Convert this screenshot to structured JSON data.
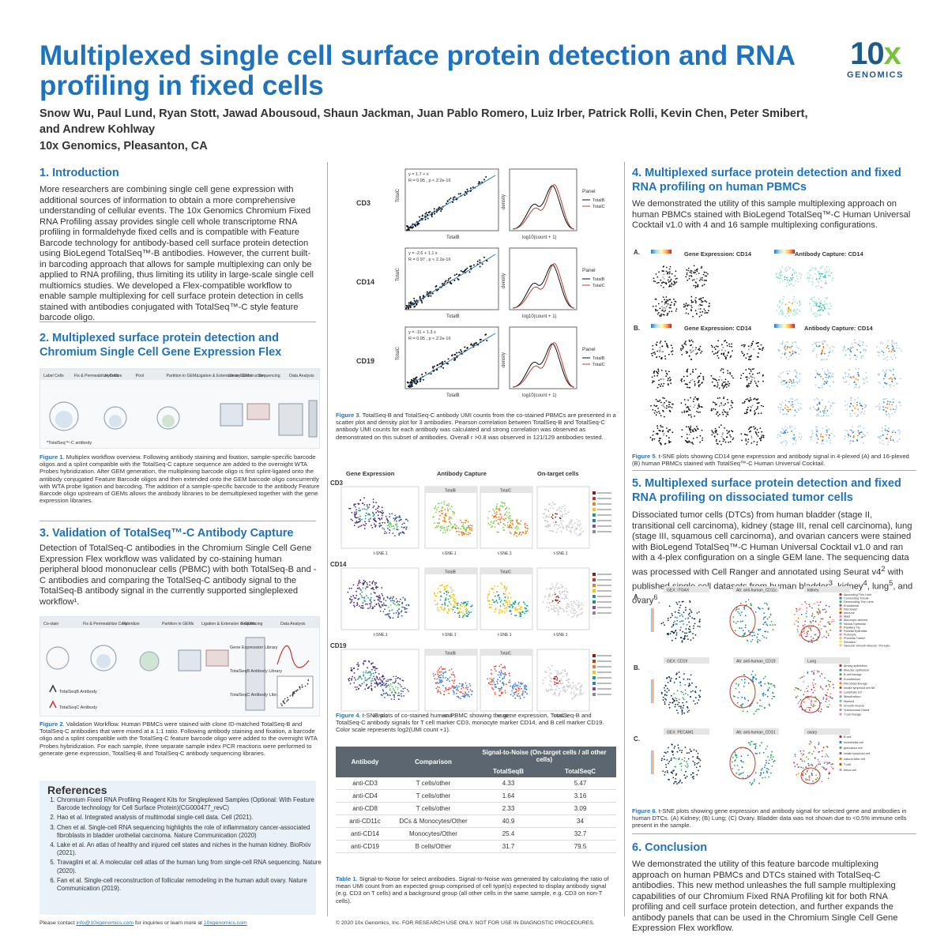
{
  "poster": {
    "title": "Multiplexed single cell surface protein detection and RNA profiling in fixed cells",
    "authors": "Snow Wu, Paul Lund, Ryan Stott, Jawad Abousoud, Shaun Jackman, Juan Pablo Romero, Luiz Irber, Patrick Rolli, Kevin Chen, Peter Smibert, and Andrew Kohlway",
    "affiliation": "10x Genomics, Pleasanton, CA",
    "logo_main": "10",
    "logo_x": "x",
    "logo_sub": "GENOMICS",
    "accent_color": "#1e73be"
  },
  "sec1": {
    "heading": "1. Introduction",
    "text": "More researchers are combining single cell gene expression with additional sources of information to obtain a more comprehensive understanding of cellular events. The 10x Genomics Chromium Fixed RNA Profiling assay provides single cell whole transcriptome RNA profiling in formaldehyde fixed cells and is compatible with Feature Barcode technology for antibody-based cell surface protein detection using BioLegend TotalSeq™-B antibodies. However, the current built-in barcoding approach that allows for sample multiplexing can only be applied to RNA profiling, thus limiting its utility in large-scale single cell multiomics studies. We developed a Flex-compatible workflow to enable sample multiplexing for cell surface protein detection in cells stained with antibodies conjugated with TotalSeq™-C style feature barcode oligo."
  },
  "sec2": {
    "heading": "2. Multiplexed surface protein detection and Chromium Single Cell Gene Expression Flex",
    "steps": [
      "Label Cells",
      "Fix & Permeabilize Cells",
      "Hybridize",
      "Pool",
      "Partition in GEMs",
      "Ligation & Extension in GEMs",
      "Library Construction",
      "Sequencing",
      "Data Analysis"
    ],
    "legend": "*TotalSeq™-C antibody",
    "fig_caption_label": "Figure 1",
    "fig_caption": ". Multiplex workflow overview. Following antibody staining and fixation, sample-specific barcode oligos and a splint compatible with the TotalSeq-C capture sequence are added to the overnight WTA Probes hybridization. After GEM generation, the multiplexing barcode oligo is first splint-ligated onto the antibody conjugated Feature Barcode oligos and then extended onto the GEM barcode oligo concurrently with WTA probe ligation and barcoding. The addition of a sample-specific barcode to the antibody Feature Barcode oligo upstream of GEMs allows the antibody libraries to be demultiplexed together with the gene expression libraries."
  },
  "sec3": {
    "heading": "3. Validation of TotalSeq™-C Antibody Capture",
    "text": "Detection of TotalSeq-C antibodies in the Chromium Single Cell Gene Expression Flex workflow was validated by co-staining human peripheral blood mononuclear cells (PBMC) with both TotalSeq-B and -C antibodies and comparing the TotalSeq-C antibody signal to the TotalSeq-B antibody signal in the currently supported singleplexed workflow¹.",
    "steps": [
      "Co-stain",
      "Fix & Permeabilize Cells",
      "Hybridize",
      "Partition in GEMs",
      "Ligation & Extension in GEMs",
      "Sequencing",
      "Data Analysis"
    ],
    "libs": [
      "Gene Expression Library",
      "TotalSeqB Antibody Library",
      "TotalSeqC Antibody Library"
    ],
    "ab_b": "TotalSeqB Antibody",
    "ab_c": "TotalSeqC Antibody",
    "fig_caption_label": "Figure 2",
    "fig_caption": ". Validation Workflow. Human PBMCs were stained with clone ID-matched TotalSeq-B and TotalSeq-C antibodies that were mixed at a 1:1 ratio. Following antibody staining and fixation, a barcode oligo and a splint compatible with the TotalSeq-C feature barcode oligo were added to the overnight WTA Probes hybridization. For each sample, three separate sample index PCR reactions were performed to generate gene expression, TotalSeq-B and TotalSeq-C antibody sequencing libraries."
  },
  "references": {
    "heading": "References",
    "items": [
      "Chromium Fixed RNA Profiling Reagent Kits for Singleplexed Samples (Optional: With Feature Barcode technology for Cell Surface Protein)(CG000477_revC)",
      "Hao et al. Integrated analysis of multimodal single-cell data. Cell (2021).",
      "Chen et al. Single-cell RNA sequencing highlights the role of inflammatory cancer-associated fibroblasts in bladder urothelial carcinoma. Nature Communication (2020)",
      "Lake et al. An atlas of healthy and injured cell states and niches in the human kidney. BioRxiv (2021).",
      "Travaglini et al. A molecular cell atlas of the human lung from single-cell RNA sequencing. Nature (2020).",
      "Fan et al. Single-cell reconstruction of follicular remodeling in the human adult ovary. Nature Communication (2019)."
    ]
  },
  "footer": {
    "contact_pre": "Please contact ",
    "email": "info@10xgenomics.com",
    "contact_mid": " for inquiries or learn more at ",
    "site": "10xgenomics.com",
    "copyright": "© 2020 10x Genomics, Inc. FOR RESEARCH USE ONLY. NOT FOR USE IN DIAGNOSTIC PROCEDURES."
  },
  "fig3": {
    "rows": [
      "CD3",
      "CD14",
      "CD19"
    ],
    "equations": [
      "y = 1.7 + x",
      "y = -2.6 + 1.1 x",
      "y = -11 + 1.3 x"
    ],
    "stats": [
      "R = 0.95 , p < 2.2e-16",
      "R = 0.97 , p < 2.2e-16",
      "R = 0.95 , p < 2.2e-16"
    ],
    "xlabel": "TotalB",
    "ylabel": "TotalC",
    "density_xlabel": "log10(count + 1)",
    "density_ylabel": "density",
    "panel_title": "Panel",
    "panel_b": "TotalB",
    "panel_c": "TotalC",
    "caption_label": "Figure 3",
    "caption": ". TotalSeq-B and TotalSeq-C antibody UMI counts from the co-stained PBMCs are presented in a scatter plot and density plot for 3 antibodies. Pearson correlation between TotalSeq-B and TotalSeq-C antibody UMI counts for each antibody was calculated and strong correlation was observed as demonstrated on this subset of antibodies. Overall r >0.8 was observed in 121/129 antibodies tested."
  },
  "fig4": {
    "col_heads": [
      "Gene Expression",
      "Antibody Capture",
      "On-target cells"
    ],
    "rows": [
      "CD3",
      "CD14",
      "CD19"
    ],
    "sub_b": "TotalB",
    "sub_c": "TotalC",
    "axis_x": "t-SNE.1",
    "axis_y": "t-SNE.2",
    "caption_label": "Figure 4",
    "caption": ". t-SNE plots of co-stained human PBMC showing the gene expression, TotalSeq-B and TotalSeq-C antibody signals for T cell marker CD3, monocyte marker CD14, and B cell marker CD19. Color scale represents log2(UMI count +1)."
  },
  "table1": {
    "group_head": "Signal-to-Noise (On-target cells / all other cells)",
    "headers": [
      "Antibody",
      "Comparison",
      "TotalSeqB",
      "TotalSeqC"
    ],
    "rows": [
      [
        "anti-CD3",
        "T cells/other",
        "4.33",
        "5.47"
      ],
      [
        "anti-CD4",
        "T cells/other",
        "1.64",
        "3.16"
      ],
      [
        "anti-CD8",
        "T cells/other",
        "2.33",
        "3.09"
      ],
      [
        "anti-CD11c",
        "DCs & Monocytes/Other",
        "40.9",
        "34"
      ],
      [
        "anti-CD14",
        "Monocytes/Other",
        "25.4",
        "32.7"
      ],
      [
        "anti-CD19",
        "B cells/Other",
        "31.7",
        "79.5"
      ]
    ],
    "caption_label": "Table 1",
    "caption": ". Signal-to-Noise for select antibodies. Signal-to-Noise was generated by calculating the ratio of mean UMI count from an expected group comprised of cell type(s) expected to display antibody signal (e.g. CD3 on T cells) and a background group (all other cells in the same sample, e.g. CD3 on non-T cells)."
  },
  "sec4": {
    "heading": "4. Multiplexed surface protein detection and fixed RNA profiling on human PBMCs",
    "text": "We demonstrated the utility of this sample multiplexing approach on human PBMCs  stained with BioLegend TotalSeq™-C Human Universal Cocktail v1.0 with 4 and 16 sample multiplexing configurations.",
    "panel_a": "A.",
    "panel_b": "B.",
    "ge_title": "Gene Expression: CD14",
    "ab_title": "Antibody Capture: CD14",
    "caption_label": "Figure 5",
    "caption": ". t-SNE plots showing CD14 gene expression and antibody signal in 4-plexed (A) and 16-plexed (B) human PBMCs stained with TotalSeq™-C Human Universal Cocktail."
  },
  "sec5": {
    "heading": "5. Multiplexed surface protein detection and fixed RNA profiling on dissociated tumor cells",
    "text_a": "Dissociated tumor cells (DTCs) from human bladder (stage II, transitional cell carcinoma), kidney (stage III, renal cell carcinoma), lung (stage III, squamous cell carcinoma), and ovarian cancers were stained with BioLegend TotalSeq™-C Human Universal Cocktail v1.0 and ran with a 4-plex configuration on a single GEM lane. The sequencing data was processed with Cell Ranger and annotated using Seurat v4",
    "sup2": "2",
    "text_b": " with published single cell datasets from human bladder",
    "sup3": "3",
    "text_c": ", kidney",
    "sup4": "4",
    "text_d": ", lung",
    "sup5": "5",
    "text_e": ", and ovary",
    "sup6": "6",
    "text_f": ".",
    "rows": [
      "A.",
      "B.",
      "C."
    ],
    "titles": [
      [
        "GEX: ITGAX",
        "Ab: anti-human_CD11c",
        "kidney"
      ],
      [
        "GEX: CD19",
        "Ab: anti-human_CD19",
        "Lung"
      ],
      [
        "GEX: PECAM1",
        "Ab: anti-human_CD31",
        "ovary"
      ]
    ],
    "legends": [
      [
        "Ascending Thin Limb",
        "Connecting Tubule",
        "Descending Thin Limb",
        "Endothelial",
        "Fibroblast",
        "Immune",
        "Mast",
        "Monocyte-derived",
        "Neural Epithelial",
        "Papillary Tip",
        "Parietal Epithelial",
        "Podocyte",
        "Proximal Tubule",
        "Schwann",
        "Vascular Smooth Muscle / Pericyte"
      ],
      [
        "Airway epithelium",
        "Alveolar epithelium",
        "B cell lineage",
        "Endothelium",
        "Fibroblast lineage",
        "Innate lymphoid cell NK",
        "Lymphatic EC",
        "Mesothelium",
        "Myeloid",
        "Smooth muscle",
        "Submucosal Gland",
        "T cell lineage"
      ],
      [
        "B cell",
        "endothelial cell",
        "granulosa cell",
        "innate lymphoid cell",
        "natural killer cell",
        "T cell",
        "theca cell"
      ]
    ],
    "caption_label": "Figure 6",
    "caption": ". t-SNE plots showing gene expression and antibody signal for selected gene and antibodies in human DTCs. (A) Kidney; (B) Lung; (C) Ovary. Bladder data was not shown due to <0.5% immune cells present in the sample."
  },
  "sec6": {
    "heading": "6. Conclusion",
    "text": "We demonstrated the utility of this feature barcode multiplexing approach on human PBMCs and DTCs stained with TotalSeq-C antibodies. This new method unleashes the full sample multiplexing capabilities of our Chromium Fixed RNA Profiling kit for both RNA profiling and cell surface protein detection, and further expands the antibody panels that can be used in the Chromium Single Cell Gene Expression Flex workflow."
  }
}
